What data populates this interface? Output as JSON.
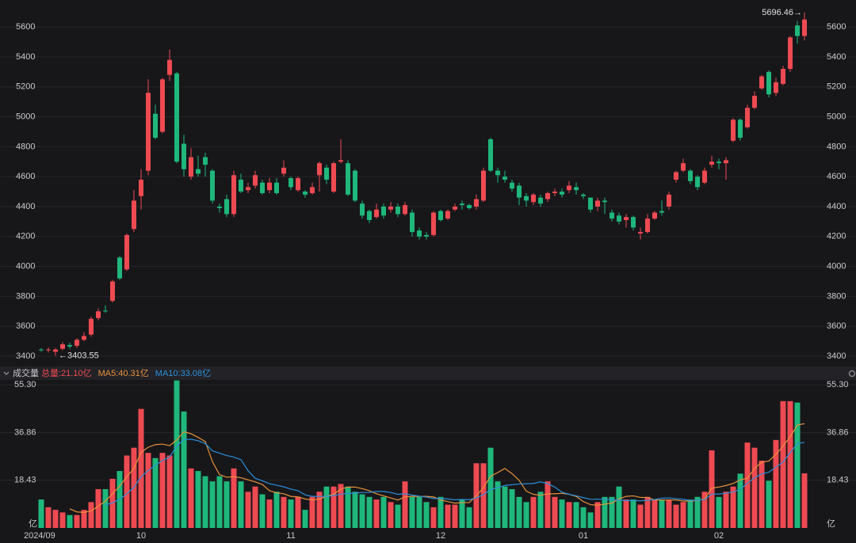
{
  "chart_data": {
    "type": "candlestick",
    "up_color": "#ee4a52",
    "down_color": "#1fb77b",
    "grid": true,
    "categories": [
      "2024/09",
      null,
      null,
      null,
      null,
      null,
      null,
      null,
      null,
      null,
      null,
      null,
      null,
      null,
      "10",
      null,
      null,
      null,
      null,
      null,
      null,
      null,
      null,
      null,
      null,
      null,
      null,
      null,
      null,
      null,
      null,
      null,
      null,
      null,
      null,
      "11",
      null,
      null,
      null,
      null,
      null,
      null,
      null,
      null,
      null,
      null,
      null,
      null,
      null,
      null,
      null,
      null,
      null,
      null,
      null,
      null,
      "12",
      null,
      null,
      null,
      null,
      null,
      null,
      null,
      null,
      null,
      null,
      null,
      null,
      null,
      null,
      null,
      null,
      null,
      null,
      null,
      "01",
      null,
      null,
      null,
      null,
      null,
      null,
      null,
      null,
      null,
      null,
      null,
      null,
      null,
      null,
      null,
      null,
      null,
      null,
      "02",
      null,
      null,
      null,
      null,
      null,
      null,
      null,
      null,
      null,
      null,
      null,
      null
    ],
    "price": {
      "open": [
        3445,
        3440,
        3430,
        3450,
        3475,
        3470,
        3510,
        3545,
        3655,
        3705,
        3770,
        4060,
        3980,
        4250,
        4470,
        4640,
        5020,
        4900,
        5280,
        5290,
        4820,
        4600,
        4650,
        4730,
        4640,
        4400,
        4450,
        4350,
        4580,
        4510,
        4540,
        4560,
        4510,
        4560,
        4620,
        4590,
        4510,
        4500,
        4490,
        4610,
        4660,
        4500,
        4700,
        4690,
        4640,
        4420,
        4370,
        4330,
        4400,
        4380,
        4400,
        4350,
        4360,
        4240,
        4210,
        4210,
        4370,
        4320,
        4380,
        4420,
        4410,
        4400,
        4440,
        4850,
        4640,
        4600,
        4560,
        4540,
        4470,
        4430,
        4460,
        4450,
        4490,
        4500,
        4510,
        4530,
        4480,
        4460,
        4400,
        4440,
        4360,
        4340,
        4310,
        4330,
        4220,
        4230,
        4320,
        4370,
        4400,
        4580,
        4640,
        4640,
        4600,
        4560,
        4680,
        4700,
        4690,
        4840,
        4980,
        4930,
        5060,
        5190,
        5300,
        5160,
        5220,
        5320,
        5610,
        5540
      ],
      "high": [
        3455,
        3460,
        3455,
        3495,
        3490,
        3520,
        3560,
        3665,
        3720,
        3740,
        3910,
        4070,
        4220,
        4510,
        4650,
        5250,
        5080,
        5260,
        5450,
        5300,
        4880,
        4790,
        4740,
        4760,
        4650,
        4420,
        4480,
        4640,
        4620,
        4560,
        4640,
        4580,
        4590,
        4590,
        4710,
        4600,
        4600,
        4510,
        4560,
        4700,
        4680,
        4700,
        4850,
        4710,
        4650,
        4440,
        4380,
        4420,
        4420,
        4430,
        4420,
        4430,
        4380,
        4260,
        4230,
        4370,
        4380,
        4380,
        4420,
        4440,
        4420,
        4480,
        4660,
        4860,
        4660,
        4640,
        4580,
        4560,
        4490,
        4490,
        4480,
        4500,
        4520,
        4520,
        4570,
        4560,
        4490,
        4460,
        4460,
        4460,
        4380,
        4360,
        4350,
        4340,
        4260,
        4350,
        4370,
        4440,
        4500,
        4640,
        4720,
        4650,
        4610,
        4660,
        4740,
        4720,
        4730,
        4990,
        4990,
        5080,
        5170,
        5280,
        5310,
        5260,
        5340,
        5540,
        5640,
        5696.46
      ],
      "low": [
        3430,
        3425,
        3403.55,
        3440,
        3450,
        3455,
        3500,
        3530,
        3640,
        3690,
        3760,
        3910,
        3970,
        4230,
        4380,
        4610,
        4850,
        4890,
        5240,
        4690,
        4600,
        4580,
        4600,
        4600,
        4420,
        4360,
        4330,
        4330,
        4490,
        4490,
        4520,
        4480,
        4490,
        4480,
        4600,
        4510,
        4500,
        4460,
        4480,
        4500,
        4550,
        4490,
        4690,
        4470,
        4430,
        4320,
        4290,
        4320,
        4320,
        4360,
        4330,
        4340,
        4200,
        4180,
        4180,
        4200,
        4300,
        4310,
        4370,
        4380,
        4380,
        4380,
        4430,
        4630,
        4560,
        4560,
        4500,
        4410,
        4400,
        4410,
        4400,
        4430,
        4470,
        4460,
        4490,
        4480,
        4450,
        4360,
        4370,
        4350,
        4300,
        4280,
        4260,
        4240,
        4180,
        4220,
        4310,
        4340,
        4380,
        4560,
        4630,
        4550,
        4510,
        4550,
        4660,
        4650,
        4580,
        4830,
        4840,
        4920,
        5050,
        5180,
        5130,
        5140,
        5210,
        5300,
        5490,
        5510
      ],
      "close": [
        3440,
        3445,
        3445,
        3480,
        3465,
        3510,
        3535,
        3650,
        3700,
        3700,
        3900,
        3920,
        4210,
        4440,
        4580,
        5160,
        4860,
        5250,
        5380,
        4700,
        4650,
        4730,
        4620,
        4680,
        4440,
        4390,
        4350,
        4610,
        4500,
        4530,
        4610,
        4490,
        4560,
        4490,
        4660,
        4530,
        4590,
        4480,
        4530,
        4690,
        4580,
        4690,
        4710,
        4480,
        4440,
        4340,
        4310,
        4380,
        4340,
        4400,
        4350,
        4410,
        4230,
        4200,
        4200,
        4360,
        4310,
        4370,
        4400,
        4410,
        4390,
        4450,
        4640,
        4640,
        4610,
        4580,
        4520,
        4460,
        4440,
        4480,
        4420,
        4490,
        4500,
        4480,
        4540,
        4510,
        4470,
        4380,
        4440,
        4430,
        4320,
        4300,
        4330,
        4260,
        4230,
        4320,
        4360,
        4360,
        4480,
        4630,
        4690,
        4570,
        4530,
        4640,
        4700,
        4690,
        4710,
        4980,
        4860,
        5060,
        5140,
        5270,
        5150,
        5230,
        5320,
        5530,
        5540,
        5650
      ],
      "ylim": [
        3358,
        5738
      ],
      "yticks": [
        3400,
        3600,
        3800,
        4000,
        4200,
        4400,
        4600,
        4800,
        5000,
        5200,
        5400,
        5600
      ],
      "annotations": [
        {
          "label": "5696.46→",
          "value": 5696.46
        },
        {
          "label": "←3403.55",
          "value": 3403.55
        }
      ]
    },
    "volume": {
      "title": "成交量",
      "legend": "总量:21.10亿",
      "unit": "亿",
      "values": [
        11,
        8,
        7,
        6,
        5,
        5,
        7,
        10,
        15,
        15,
        19,
        22,
        28,
        31,
        46,
        29,
        27,
        29,
        28,
        57,
        45,
        23,
        22,
        20,
        18,
        20,
        18,
        23,
        18,
        14,
        16,
        13,
        11,
        14,
        12,
        11,
        12,
        7,
        12,
        14,
        16,
        16,
        17,
        16,
        14,
        13,
        12,
        11,
        12,
        10,
        9,
        18,
        12,
        12,
        10,
        8,
        12,
        9,
        9,
        11,
        8,
        25,
        25,
        31,
        18,
        16,
        15,
        12,
        10,
        12,
        14,
        18,
        12,
        11,
        10,
        10,
        8,
        6,
        10,
        12,
        12,
        16,
        11,
        11,
        9,
        12,
        11,
        11,
        11,
        9,
        10,
        11,
        12,
        14,
        30,
        12,
        14,
        16,
        21,
        33,
        31,
        26,
        18.25,
        34,
        49,
        49,
        48.45,
        21.1
      ],
      "ylim": [
        0,
        57.5
      ],
      "yticks": [
        18.43,
        36.86,
        {
          "value": 55.3,
          "label": "55.30"
        }
      ],
      "series": [
        {
          "name": "MA5:40.31亿",
          "color": "#e8913a",
          "values": [
            null,
            null,
            null,
            null,
            7.4,
            6.2,
            6,
            6.6,
            8.4,
            10.4,
            13.2,
            16.2,
            19.8,
            23,
            29.2,
            31.2,
            32.2,
            32.4,
            31.8,
            34,
            37.2,
            36.4,
            35,
            33.4,
            25.6,
            20.6,
            19.6,
            19.8,
            19.4,
            18.6,
            17.8,
            16.8,
            14.4,
            13.6,
            13.2,
            12.2,
            12,
            11.2,
            10.8,
            11.2,
            12.2,
            13,
            15,
            15.8,
            15.8,
            15.2,
            14.4,
            13.2,
            12.4,
            11.6,
            10.8,
            12,
            12.2,
            12.2,
            12.2,
            12,
            10.8,
            10.2,
            9.6,
            9.8,
            9.8,
            12.4,
            15.6,
            20,
            21.4,
            23,
            21,
            18.4,
            14.2,
            13,
            12.6,
            13.2,
            13.2,
            13.4,
            13,
            12.2,
            10.2,
            9,
            8.8,
            9.2,
            9.6,
            11.2,
            12.2,
            12.4,
            11.8,
            11.8,
            10.8,
            10.8,
            10.8,
            10.8,
            10.4,
            10.4,
            10.6,
            11.2,
            15.4,
            15.8,
            16.4,
            17.2,
            18.6,
            19.2,
            23,
            25.4,
            25.85,
            28.45,
            31.65,
            35.25,
            39.74,
            40.31
          ]
        },
        {
          "name": "MA10:33.08亿",
          "color": "#2b8fdc",
          "values": [
            null,
            null,
            null,
            null,
            null,
            null,
            null,
            null,
            null,
            8.9,
            9.7,
            11.1,
            13.2,
            15.7,
            19.8,
            22.2,
            24.2,
            26.1,
            27.4,
            31.6,
            34.2,
            34.3,
            33.7,
            32.6,
            29.8,
            28.9,
            28,
            27.4,
            26.4,
            22.1,
            19.2,
            18.2,
            17.1,
            16.5,
            15.9,
            15,
            14.4,
            12.8,
            12.2,
            12.2,
            12.2,
            12.5,
            13.1,
            13.3,
            13.5,
            13.7,
            13.7,
            14.1,
            14.1,
            13.7,
            13,
            13.2,
            12.7,
            12.3,
            11.9,
            11.4,
            11.4,
            11.2,
            10.9,
            11,
            10.9,
            11.6,
            12.9,
            14.8,
            15.6,
            16.4,
            16.7,
            17,
            17.1,
            17.2,
            17.8,
            17.1,
            15.8,
            13.8,
            13,
            12.4,
            11.7,
            11.1,
            11.1,
            11.1,
            10.9,
            10.7,
            10.6,
            10.6,
            10.5,
            10.7,
            11,
            11.5,
            11.6,
            11.3,
            11.1,
            10.6,
            10.7,
            11,
            13.1,
            13.1,
            13.4,
            13.9,
            14.9,
            17.3,
            19.4,
            20.9,
            21.53,
            23.53,
            25.43,
            29.13,
            32.57,
            33.08
          ]
        }
      ]
    }
  }
}
